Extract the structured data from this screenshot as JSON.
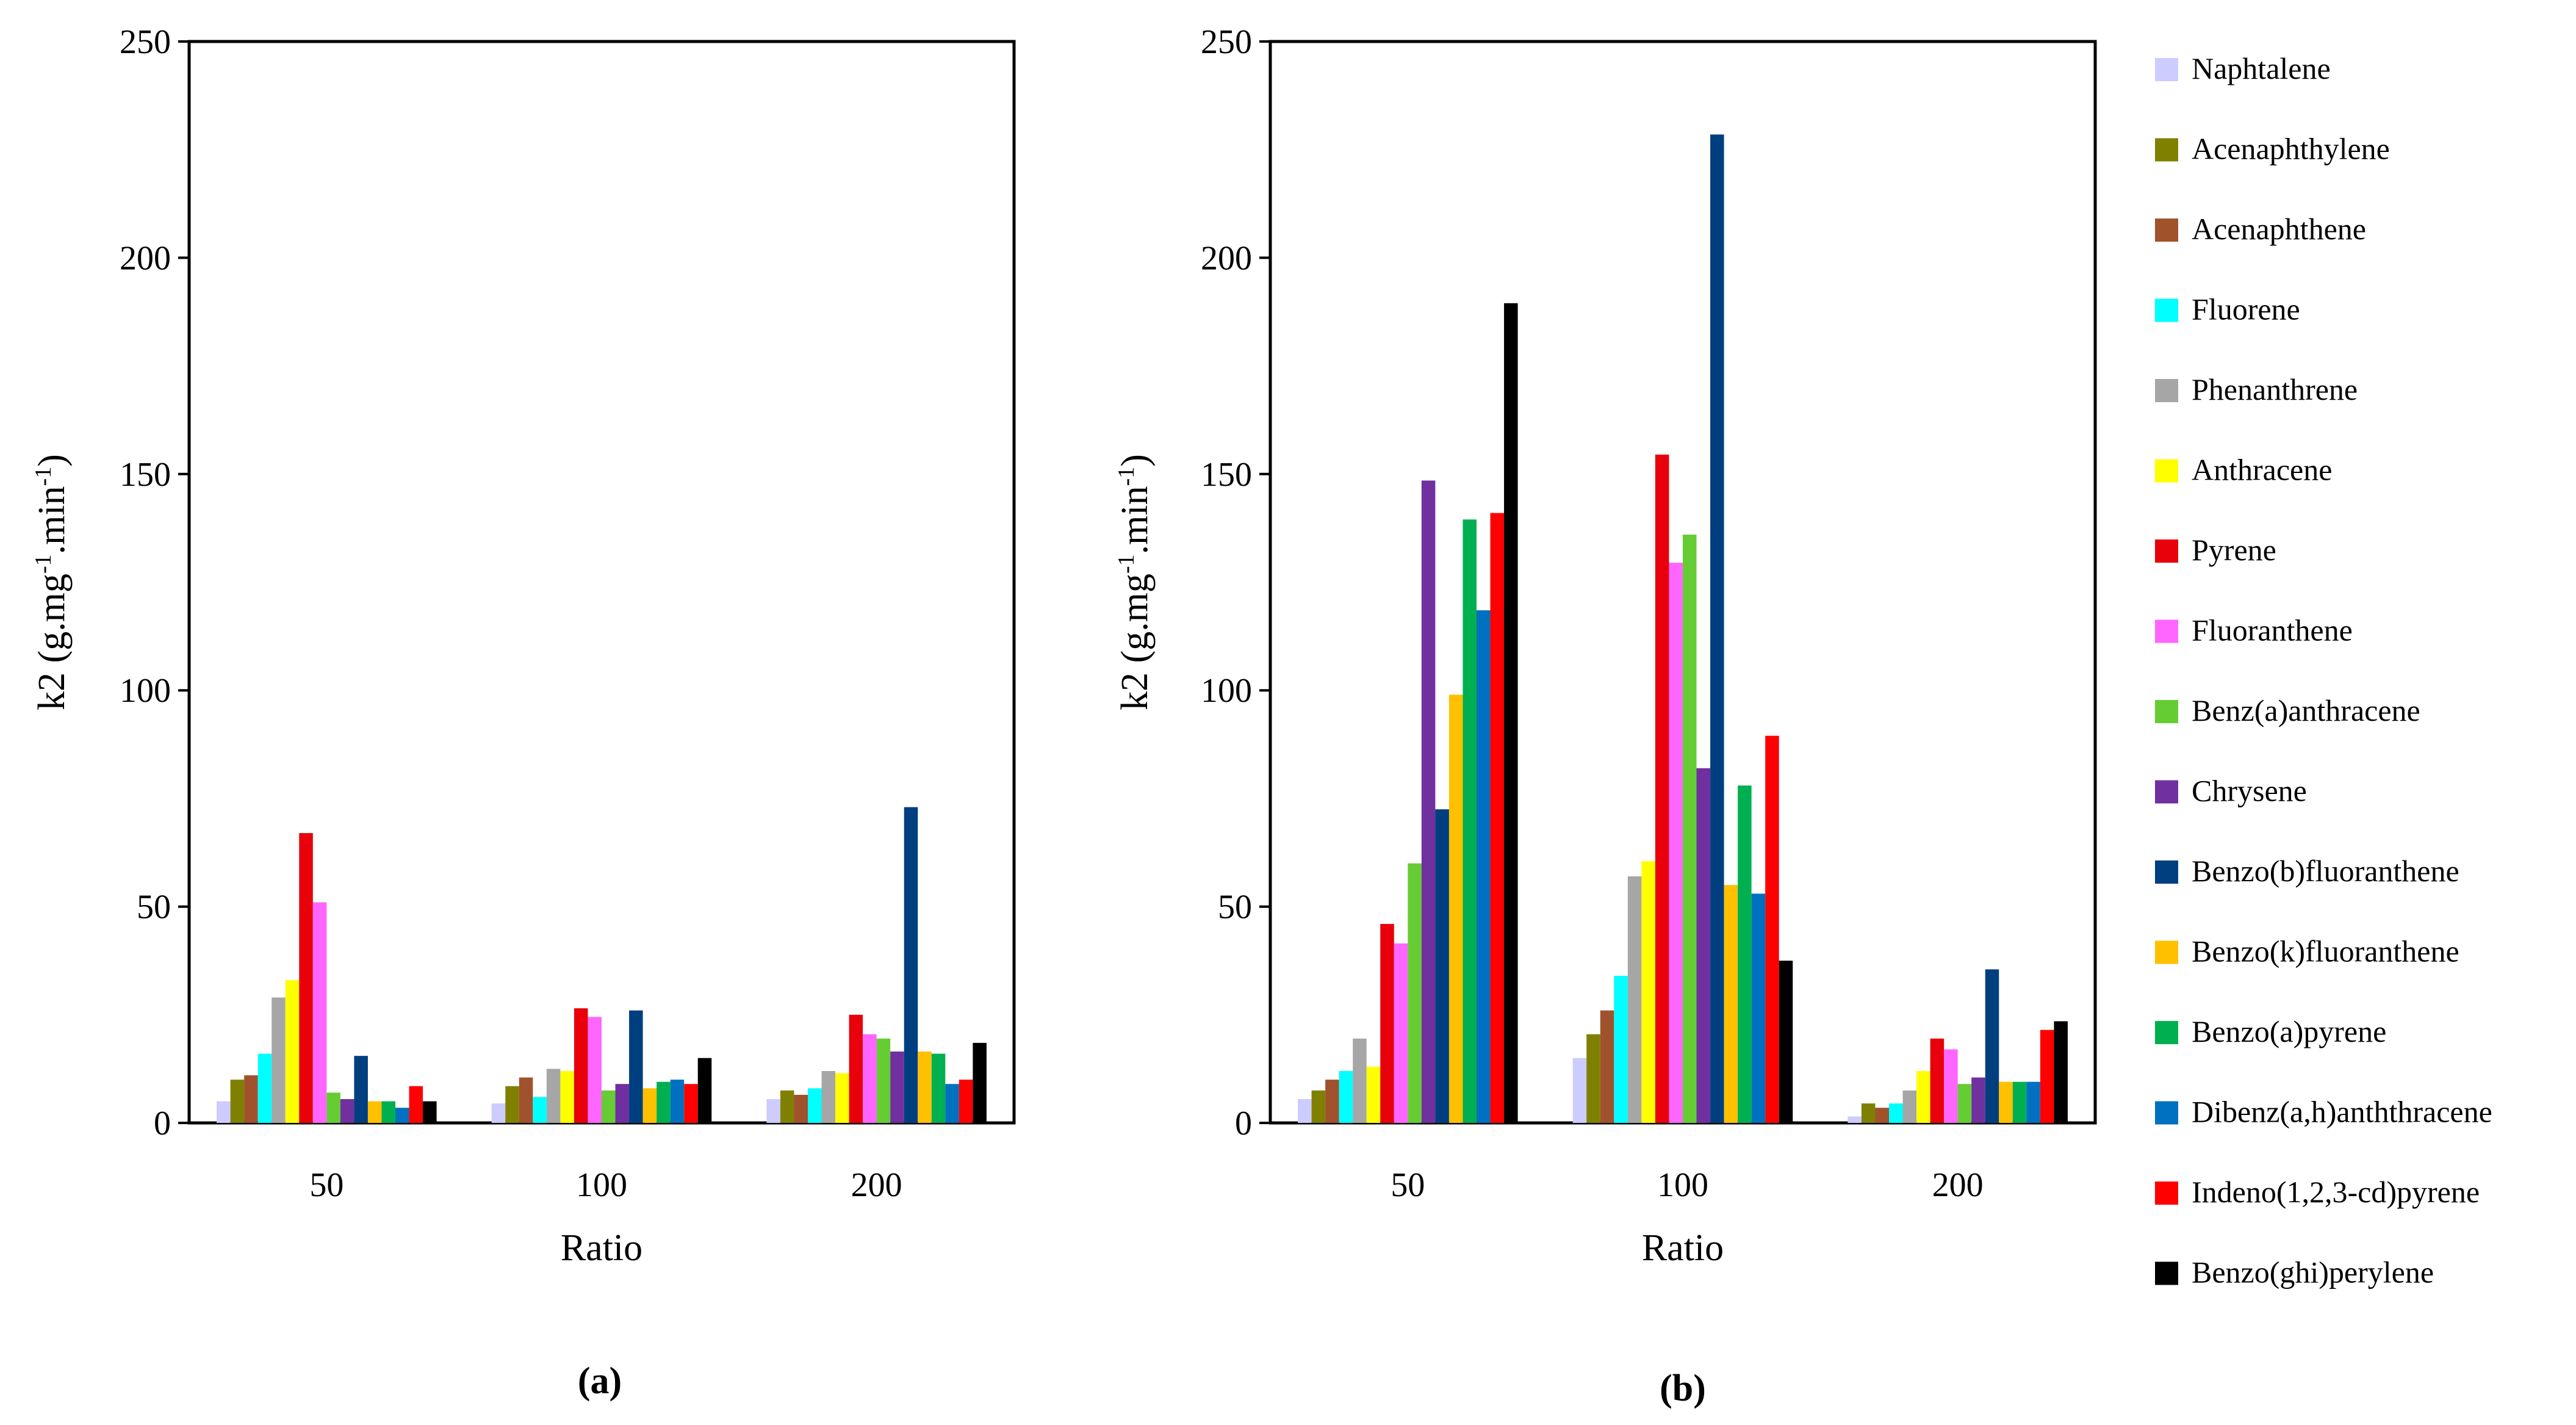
{
  "chart_data": [
    {
      "type": "bar",
      "panel_label": "(a)",
      "xlabel": "Ratio",
      "ylabel": "k2  (g.mg",
      "ylabel_sup1": "-1",
      "ylabel_mid": ".min",
      "ylabel_sup2": "-1",
      "ylabel_end": ")",
      "ylim": [
        0,
        250
      ],
      "yticks": [
        "0",
        "50",
        "100",
        "150",
        "200",
        "250"
      ],
      "categories": [
        "50",
        "100",
        "200"
      ],
      "grid": false,
      "legend": "right",
      "series": [
        {
          "name": "Naphtalene",
          "color": "#ccccff",
          "values": [
            5,
            4.5,
            5.5
          ]
        },
        {
          "name": "Acenaphthylene",
          "color": "#808000",
          "values": [
            10,
            8.5,
            7.5
          ]
        },
        {
          "name": "Acenaphthene",
          "color": "#a0522d",
          "values": [
            11,
            10.5,
            6.5
          ]
        },
        {
          "name": "Fluorene",
          "color": "#00ffff",
          "values": [
            16,
            6,
            8
          ]
        },
        {
          "name": "Phenanthrene",
          "color": "#a6a6a6",
          "values": [
            29,
            12.5,
            12
          ]
        },
        {
          "name": "Anthracene",
          "color": "#ffff00",
          "values": [
            33,
            12,
            11.5
          ]
        },
        {
          "name": "Pyrene",
          "color": "#e8000b",
          "values": [
            67,
            26.5,
            25
          ]
        },
        {
          "name": "Fluoranthene",
          "color": "#ff66ff",
          "values": [
            51,
            24.5,
            20.5
          ]
        },
        {
          "name": "Benz(a)anthracene",
          "color": "#66cc33",
          "values": [
            7,
            7.5,
            19.5
          ]
        },
        {
          "name": "Chrysene",
          "color": "#7030a0",
          "values": [
            5.5,
            9,
            16.5
          ]
        },
        {
          "name": "Benzo(b)fluoranthene",
          "color": "#003f7f",
          "values": [
            15.5,
            26,
            73
          ]
        },
        {
          "name": "Benzo(k)fluoranthene",
          "color": "#ffc000",
          "values": [
            5,
            8,
            16.5
          ]
        },
        {
          "name": "Benzo(a)pyrene",
          "color": "#00b050",
          "values": [
            5,
            9.5,
            16
          ]
        },
        {
          "name": "Dibenz(a,h)anththracene",
          "color": "#0070c0",
          "values": [
            3.5,
            10,
            9
          ]
        },
        {
          "name": "Indeno(1,2,3-cd)pyrene",
          "color": "#ff0000",
          "values": [
            8.5,
            9,
            10
          ]
        },
        {
          "name": "Benzo(ghi)perylene",
          "color": "#000000",
          "values": [
            5,
            15,
            18.5
          ]
        }
      ]
    },
    {
      "type": "bar",
      "panel_label": "(b)",
      "xlabel": "Ratio",
      "ylabel": "k2  (g.mg",
      "ylabel_sup1": "-1",
      "ylabel_mid": ".min",
      "ylabel_sup2": "-1",
      "ylabel_end": ")",
      "ylim": [
        0,
        250
      ],
      "yticks": [
        "0",
        "50",
        "100",
        "150",
        "200",
        "250"
      ],
      "categories": [
        "50",
        "100",
        "200"
      ],
      "grid": false,
      "legend": "right",
      "series": [
        {
          "name": "Naphtalene",
          "color": "#ccccff",
          "values": [
            5.5,
            15,
            1.5
          ]
        },
        {
          "name": "Acenaphthylene",
          "color": "#808000",
          "values": [
            7.5,
            20.5,
            4.5
          ]
        },
        {
          "name": "Acenaphthene",
          "color": "#a0522d",
          "values": [
            10,
            26,
            3.5
          ]
        },
        {
          "name": "Fluorene",
          "color": "#00ffff",
          "values": [
            12,
            34,
            4.5
          ]
        },
        {
          "name": "Phenanthrene",
          "color": "#a6a6a6",
          "values": [
            19.5,
            57,
            7.5
          ]
        },
        {
          "name": "Anthracene",
          "color": "#ffff00",
          "values": [
            13,
            60.5,
            12
          ]
        },
        {
          "name": "Pyrene",
          "color": "#e8000b",
          "values": [
            46,
            154.5,
            19.5
          ]
        },
        {
          "name": "Fluoranthene",
          "color": "#ff66ff",
          "values": [
            41.5,
            129.5,
            17
          ]
        },
        {
          "name": "Benz(a)anthracene",
          "color": "#66cc33",
          "values": [
            60,
            136,
            9
          ]
        },
        {
          "name": "Chrysene",
          "color": "#7030a0",
          "values": [
            148.5,
            82,
            10.5
          ]
        },
        {
          "name": "Benzo(b)fluoranthene",
          "color": "#003f7f",
          "values": [
            72.5,
            228.5,
            35.5
          ]
        },
        {
          "name": "Benzo(k)fluoranthene",
          "color": "#ffc000",
          "values": [
            99,
            55,
            9.5
          ]
        },
        {
          "name": "Benzo(a)pyrene",
          "color": "#00b050",
          "values": [
            139.5,
            78,
            9.5
          ]
        },
        {
          "name": "Dibenz(a,h)anththracene",
          "color": "#0070c0",
          "values": [
            118.5,
            53,
            9.5
          ]
        },
        {
          "name": "Indeno(1,2,3-cd)pyrene",
          "color": "#ff0000",
          "values": [
            141,
            89.5,
            21.5
          ]
        },
        {
          "name": "Benzo(ghi)perylene",
          "color": "#000000",
          "values": [
            189.5,
            37.5,
            23.5
          ]
        }
      ]
    }
  ]
}
